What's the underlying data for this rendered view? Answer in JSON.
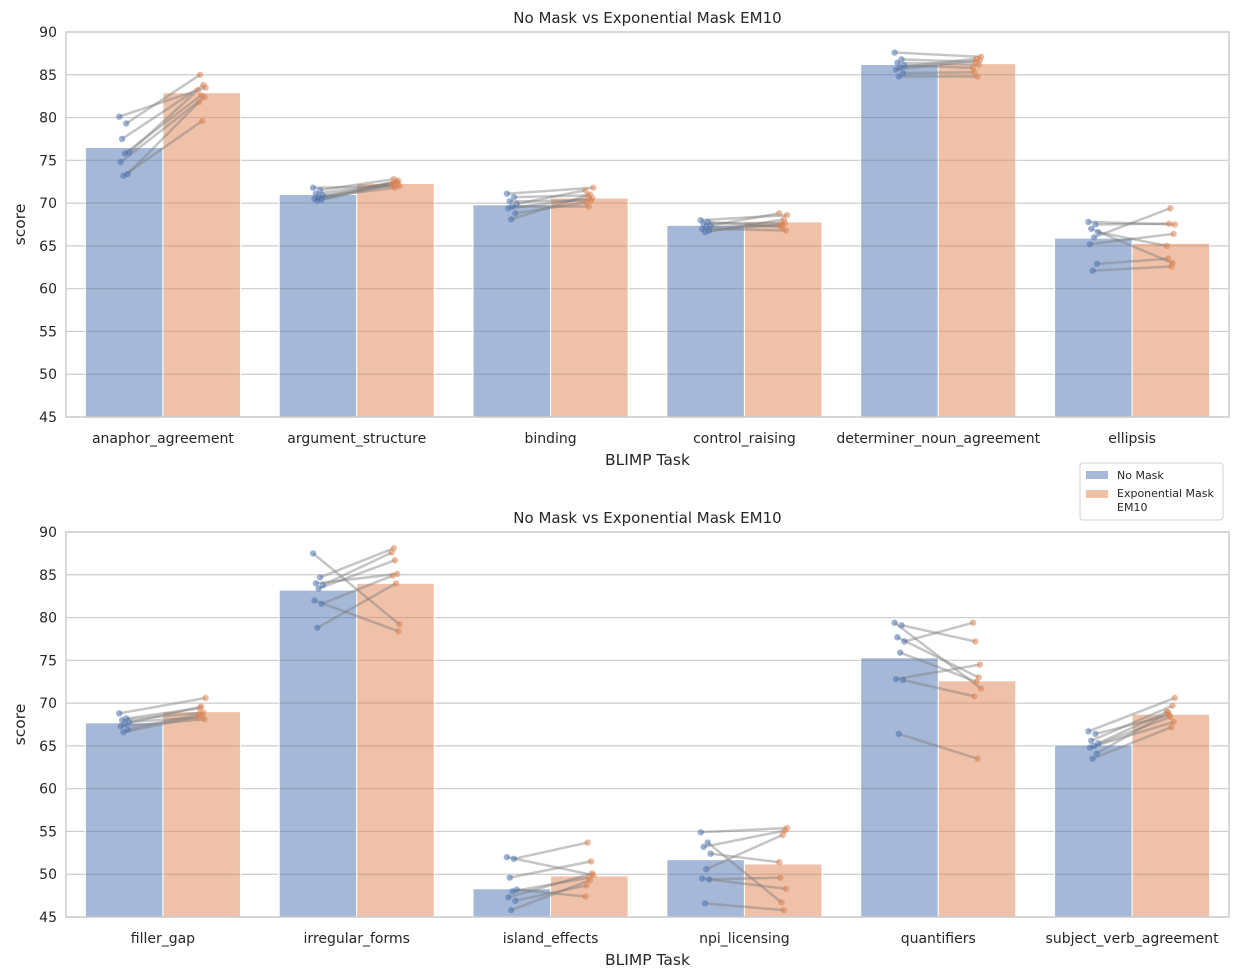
{
  "chart_data": [
    {
      "type": "bar",
      "title": "No Mask vs Exponential Mask EM10",
      "xlabel": "BLIMP Task",
      "ylabel": "score",
      "ylim": [
        45,
        90
      ],
      "yticks": [
        45,
        50,
        55,
        60,
        65,
        70,
        75,
        80,
        85,
        90
      ],
      "grid": "horizontal",
      "categories": [
        "anaphor_agreement",
        "argument_structure",
        "binding",
        "control_raising",
        "determiner_noun_agreement",
        "ellipsis"
      ],
      "series": [
        {
          "name": "No Mask",
          "color": "#4c72b0",
          "values": [
            76.5,
            71.0,
            69.8,
            67.4,
            86.2,
            65.9
          ]
        },
        {
          "name": "Exponential Mask EM10",
          "color": "#dd8452",
          "values": [
            82.9,
            72.3,
            70.6,
            67.8,
            86.3,
            65.3
          ]
        }
      ],
      "pairs": [
        [
          [
            80.1,
            83.5
          ],
          [
            79.3,
            85.0
          ],
          [
            77.5,
            83.8
          ],
          [
            75.9,
            83.2
          ],
          [
            75.8,
            82.6
          ],
          [
            74.8,
            82.4
          ],
          [
            73.4,
            81.8
          ],
          [
            73.2,
            79.6
          ]
        ],
        [
          [
            71.8,
            72.0
          ],
          [
            71.5,
            72.8
          ],
          [
            71.1,
            72.4
          ],
          [
            70.9,
            72.1
          ],
          [
            70.7,
            71.8
          ],
          [
            70.5,
            72.6
          ],
          [
            70.4,
            72.2
          ],
          [
            70.3,
            72.5
          ]
        ],
        [
          [
            71.1,
            71.8
          ],
          [
            70.7,
            70.9
          ],
          [
            70.2,
            70.3
          ],
          [
            69.9,
            71.5
          ],
          [
            69.6,
            69.6
          ],
          [
            69.4,
            70.6
          ],
          [
            68.8,
            70.1
          ],
          [
            68.1,
            71.0
          ]
        ],
        [
          [
            68.0,
            68.6
          ],
          [
            67.8,
            67.2
          ],
          [
            67.6,
            67.7
          ],
          [
            67.4,
            68.8
          ],
          [
            67.2,
            67.4
          ],
          [
            67.0,
            66.8
          ],
          [
            66.8,
            67.5
          ],
          [
            66.6,
            68.1
          ]
        ],
        [
          [
            87.6,
            87.1
          ],
          [
            86.8,
            86.5
          ],
          [
            86.4,
            86.2
          ],
          [
            86.1,
            85.8
          ],
          [
            85.9,
            86.9
          ],
          [
            85.6,
            86.7
          ],
          [
            85.2,
            85.3
          ],
          [
            84.8,
            84.8
          ]
        ],
        [
          [
            67.8,
            67.5
          ],
          [
            67.5,
            67.6
          ],
          [
            67.0,
            63.0
          ],
          [
            66.6,
            65.0
          ],
          [
            66.0,
            69.4
          ],
          [
            65.2,
            66.4
          ],
          [
            62.9,
            63.5
          ],
          [
            62.1,
            62.6
          ]
        ]
      ]
    },
    {
      "type": "bar",
      "title": "No Mask vs Exponential Mask EM10",
      "xlabel": "BLIMP Task",
      "ylabel": "score",
      "ylim": [
        45,
        90
      ],
      "yticks": [
        45,
        50,
        55,
        60,
        65,
        70,
        75,
        80,
        85,
        90
      ],
      "grid": "horizontal",
      "categories": [
        "filler_gap",
        "irregular_forms",
        "island_effects",
        "npi_licensing",
        "quantifiers",
        "subject_verb_agreement"
      ],
      "series": [
        {
          "name": "No Mask",
          "color": "#4c72b0",
          "values": [
            67.7,
            83.2,
            48.3,
            51.7,
            75.3,
            65.1
          ]
        },
        {
          "name": "Exponential Mask EM10",
          "color": "#dd8452",
          "values": [
            69.0,
            84.0,
            49.8,
            51.2,
            72.6,
            68.7
          ]
        }
      ],
      "pairs": [
        [
          [
            68.8,
            70.6
          ],
          [
            68.2,
            69.4
          ],
          [
            68.0,
            68.9
          ],
          [
            67.8,
            68.3
          ],
          [
            67.6,
            69.6
          ],
          [
            67.3,
            68.1
          ],
          [
            66.9,
            68.7
          ],
          [
            66.6,
            68.5
          ]
        ],
        [
          [
            87.5,
            79.2
          ],
          [
            84.7,
            88.1
          ],
          [
            84.0,
            85.1
          ],
          [
            83.8,
            87.6
          ],
          [
            83.4,
            86.7
          ],
          [
            82.0,
            78.4
          ],
          [
            81.6,
            84.9
          ],
          [
            78.8,
            84.0
          ]
        ],
        [
          [
            52.0,
            49.9
          ],
          [
            51.8,
            53.7
          ],
          [
            49.6,
            51.5
          ],
          [
            48.2,
            47.4
          ],
          [
            48.0,
            49.6
          ],
          [
            47.3,
            50.1
          ],
          [
            46.9,
            48.7
          ],
          [
            45.8,
            49.3
          ]
        ],
        [
          [
            54.9,
            55.4
          ],
          [
            53.7,
            46.7
          ],
          [
            53.2,
            55.1
          ],
          [
            52.4,
            51.4
          ],
          [
            50.6,
            54.6
          ],
          [
            49.5,
            48.3
          ],
          [
            49.4,
            49.6
          ],
          [
            46.6,
            45.8
          ]
        ],
        [
          [
            79.4,
            71.7
          ],
          [
            79.1,
            77.2
          ],
          [
            77.7,
            73.0
          ],
          [
            77.2,
            79.4
          ],
          [
            75.9,
            72.5
          ],
          [
            72.8,
            74.5
          ],
          [
            72.7,
            70.8
          ],
          [
            66.4,
            63.5
          ]
        ],
        [
          [
            66.7,
            70.6
          ],
          [
            66.4,
            68.6
          ],
          [
            65.6,
            69.7
          ],
          [
            65.3,
            69.0
          ],
          [
            65.0,
            68.4
          ],
          [
            64.8,
            67.8
          ],
          [
            64.1,
            68.9
          ],
          [
            63.5,
            67.2
          ]
        ]
      ]
    }
  ],
  "legend": {
    "placement": "between-panels-right",
    "entries": [
      {
        "label": "No Mask",
        "color": "#4c72b0"
      },
      {
        "label": "Exponential Mask EM10",
        "color": "#dd8452"
      }
    ]
  }
}
